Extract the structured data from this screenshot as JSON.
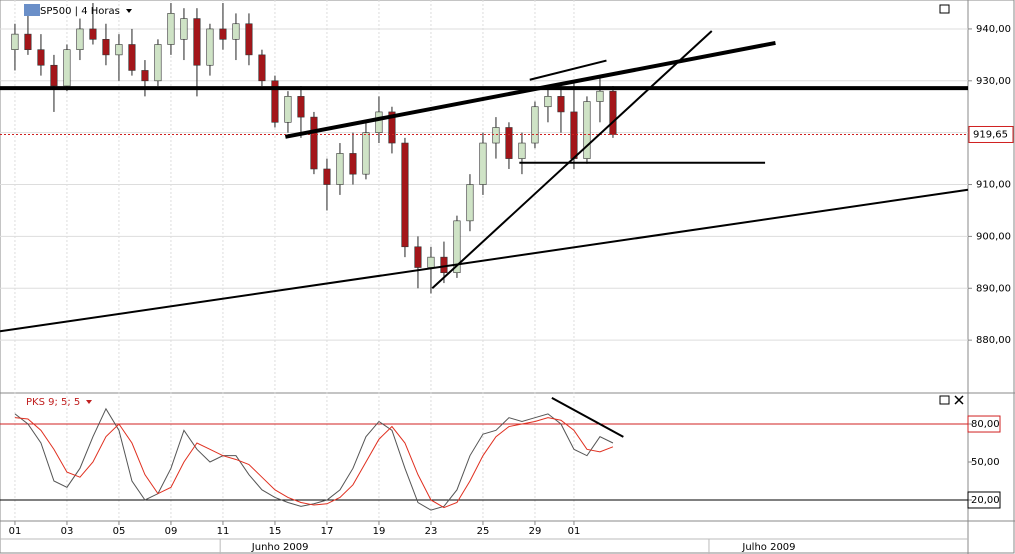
{
  "chart_data": {
    "type": "candlestick",
    "title": "SP500 | 4 Horas",
    "indicator_title": "PKS 9; 5; 5",
    "xlim": [
      -1.15,
      73.31
    ],
    "xticks": [
      {
        "value": 0,
        "label": "01"
      },
      {
        "value": 4,
        "label": "03"
      },
      {
        "value": 8,
        "label": "05"
      },
      {
        "value": 12,
        "label": "09"
      },
      {
        "value": 16,
        "label": "11"
      },
      {
        "value": 20,
        "label": "15"
      },
      {
        "value": 24,
        "label": "17"
      },
      {
        "value": 28,
        "label": "19"
      },
      {
        "value": 32,
        "label": "23"
      },
      {
        "value": 36,
        "label": "25"
      },
      {
        "value": 40,
        "label": "29"
      },
      {
        "value": 43,
        "label": "01"
      }
    ],
    "month_labels": [
      {
        "value": 20.4,
        "label": "Junho 2009"
      },
      {
        "value": 58,
        "label": "Julho 2009"
      }
    ],
    "ylim": [
      870,
      945.58
    ],
    "yticks": [
      {
        "value": 880,
        "label": "880,00"
      },
      {
        "value": 890,
        "label": "890,00"
      },
      {
        "value": 900,
        "label": "900,00"
      },
      {
        "value": 910,
        "label": "910,00"
      },
      {
        "value": 920,
        "label": "920,00"
      },
      {
        "value": 930,
        "label": "930,00"
      },
      {
        "value": 940,
        "label": "940,00"
      }
    ],
    "last_price": {
      "value": 919.65,
      "label": "919,65"
    },
    "up_color": "#cfe3c6",
    "down_color": "#a3161a",
    "grid": true,
    "candles": {
      "open": [
        936,
        939,
        936,
        933,
        929,
        936,
        940,
        938,
        935,
        937,
        932,
        930,
        937,
        938,
        942,
        933,
        940,
        938,
        941,
        935,
        930,
        922,
        927,
        923,
        913,
        910,
        916,
        912,
        920,
        924,
        918,
        898,
        894,
        896,
        893,
        903,
        910,
        918,
        921,
        915,
        918,
        925,
        927,
        924,
        915,
        926,
        928
      ],
      "high": [
        941,
        944,
        939,
        935,
        937,
        942,
        945,
        941,
        939,
        940,
        934,
        938,
        945,
        944,
        944,
        941,
        945,
        943,
        943,
        936,
        931,
        928,
        929,
        924,
        915,
        918,
        920,
        922,
        927,
        925,
        919,
        900,
        898,
        899,
        904,
        912,
        920,
        923,
        922,
        920,
        926,
        929,
        929,
        930,
        927,
        931,
        929
      ],
      "low": [
        932,
        935,
        931,
        924,
        928,
        934,
        937,
        933,
        930,
        931,
        927,
        929,
        935,
        934,
        927,
        931,
        936,
        934,
        933,
        929,
        921,
        920,
        919,
        912,
        905,
        908,
        910,
        911,
        918,
        916,
        896,
        890,
        889,
        891,
        892,
        901,
        908,
        915,
        913,
        912,
        917,
        922,
        920,
        913,
        914,
        922,
        919
      ],
      "close": [
        939,
        936,
        933,
        929,
        936,
        940,
        938,
        935,
        937,
        932,
        930,
        937,
        943,
        942,
        933,
        940,
        938,
        941,
        935,
        930,
        922,
        927,
        923,
        913,
        910,
        916,
        912,
        920,
        924,
        918,
        898,
        894,
        896,
        893,
        903,
        910,
        918,
        921,
        915,
        918,
        925,
        927,
        924,
        915,
        926,
        928,
        919.65
      ]
    },
    "trendlines": [
      {
        "x": [
          -1.15,
          73.31
        ],
        "y": [
          928.6,
          928.6
        ],
        "bold": true
      },
      {
        "x": [
          20.8,
          58.5
        ],
        "y": [
          919.2,
          937.3
        ],
        "bold": true
      },
      {
        "x": [
          39.6,
          45.5
        ],
        "y": [
          930.2,
          933.9
        ],
        "bold": false
      },
      {
        "x": [
          32.1,
          53.6
        ],
        "y": [
          890.0,
          939.6
        ],
        "bold": false
      },
      {
        "x": [
          38.8,
          57.7
        ],
        "y": [
          914.2,
          914.2
        ],
        "bold": false
      },
      {
        "x": [
          -1.15,
          73.31
        ],
        "y": [
          881.7,
          909.0
        ],
        "bold": false
      }
    ],
    "oscillator": {
      "ylim": [
        4.2,
        103.7
      ],
      "yticks": [
        {
          "value": 20,
          "label": "20,00"
        },
        {
          "value": 50,
          "label": "50,00"
        },
        {
          "value": 80,
          "label": "80,00"
        }
      ],
      "levels": [
        {
          "value": 80,
          "color": "#d02020"
        },
        {
          "value": 20,
          "color": "#000000"
        }
      ],
      "series": [
        {
          "color": "#555555",
          "values": [
            88,
            80,
            65,
            35,
            30,
            45,
            70,
            92,
            75,
            35,
            20,
            25,
            45,
            75,
            60,
            50,
            55,
            55,
            40,
            28,
            22,
            18,
            15,
            17,
            20,
            28,
            45,
            70,
            82,
            75,
            45,
            18,
            12,
            15,
            28,
            55,
            72,
            75,
            85,
            82,
            85,
            88,
            80,
            60,
            55,
            70,
            65
          ]
        },
        {
          "color": "#e03020",
          "values": [
            85,
            84,
            75,
            60,
            42,
            38,
            50,
            70,
            80,
            65,
            40,
            25,
            30,
            50,
            65,
            60,
            55,
            52,
            48,
            38,
            28,
            22,
            18,
            16,
            17,
            22,
            32,
            50,
            68,
            78,
            65,
            40,
            20,
            14,
            18,
            35,
            55,
            70,
            78,
            80,
            82,
            85,
            83,
            75,
            60,
            58,
            62
          ]
        }
      ],
      "trendline": {
        "x": [
          41.3,
          46.8
        ],
        "y": [
          100.6,
          69.8
        ]
      }
    }
  }
}
